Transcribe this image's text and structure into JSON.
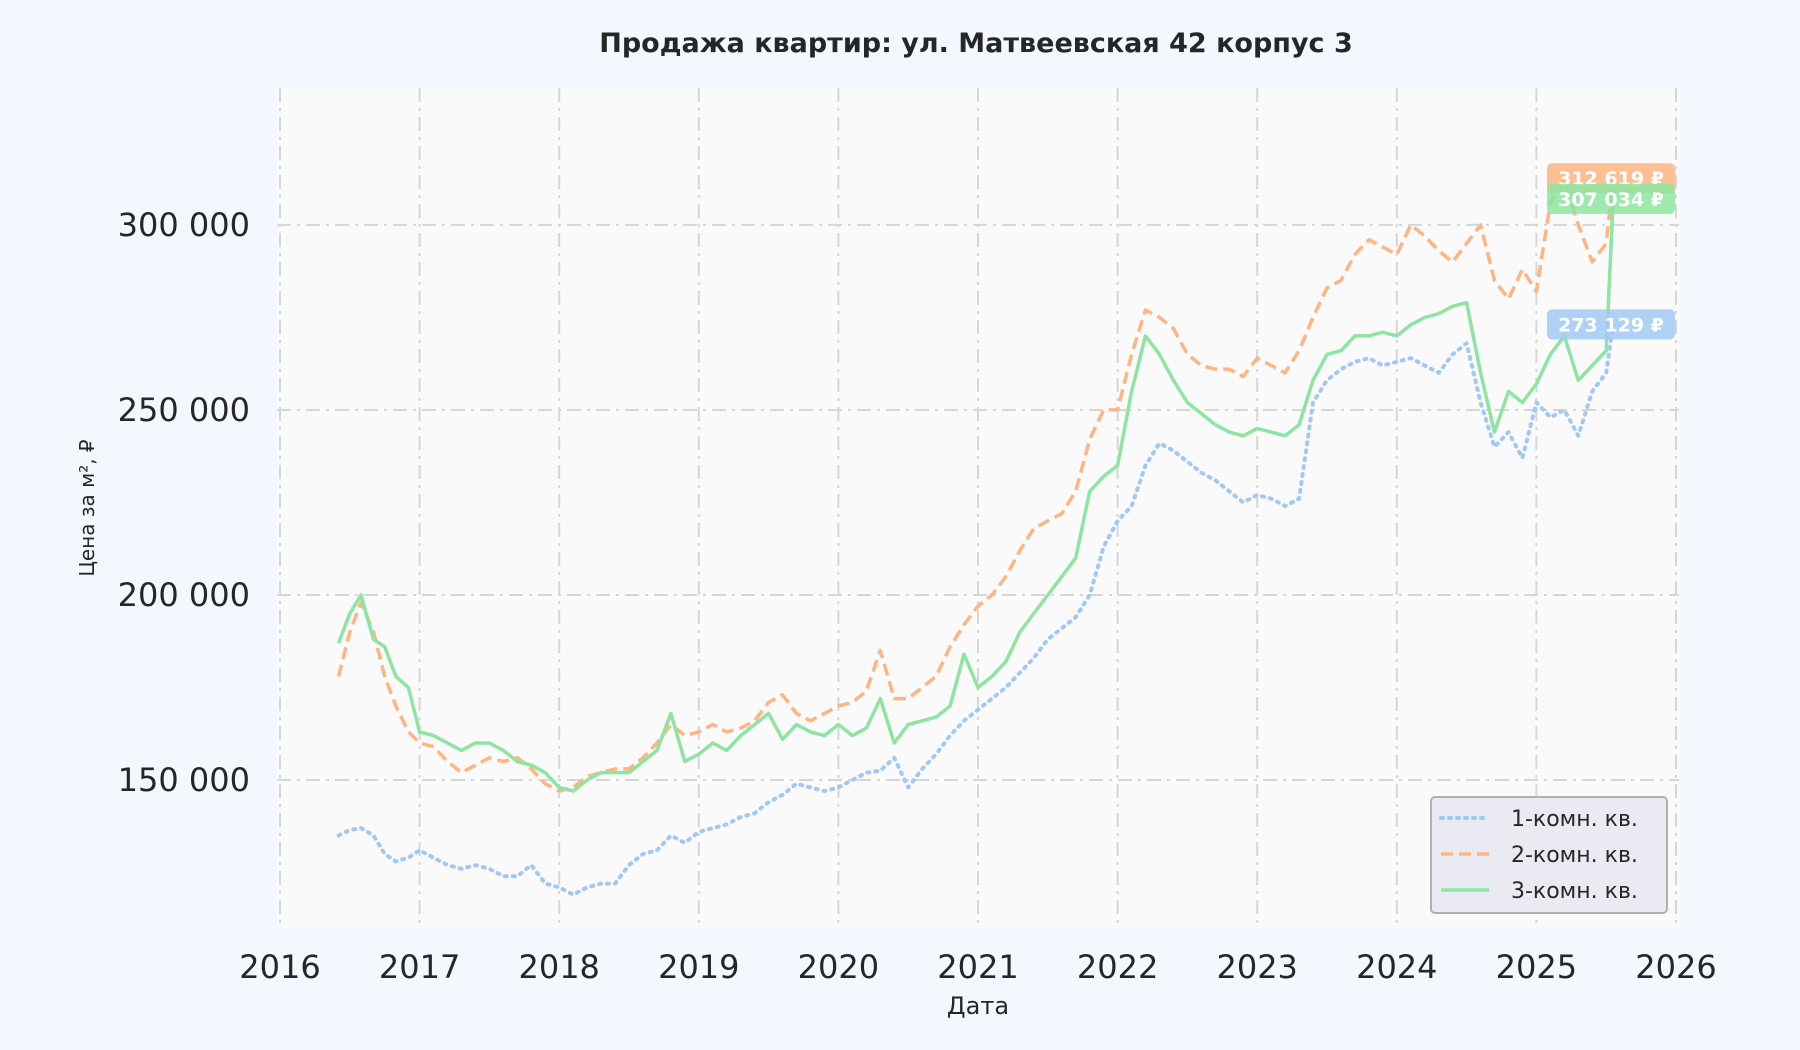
{
  "chart_data": {
    "type": "line",
    "title": "Продажа квартир: ул. Матвеевская 42 корпус 3",
    "xlabel": "Дата",
    "ylabel": "Цена за м², ₽",
    "xlim": [
      2016.0,
      2026.0
    ],
    "ylim": [
      110000,
      337000
    ],
    "x_ticks": [
      2016,
      2017,
      2018,
      2019,
      2020,
      2021,
      2022,
      2023,
      2024,
      2025,
      2026
    ],
    "x_tick_labels": [
      "2016",
      "2017",
      "2018",
      "2019",
      "2020",
      "2021",
      "2022",
      "2023",
      "2024",
      "2025",
      "2026"
    ],
    "y_ticks": [
      150000,
      200000,
      250000,
      300000
    ],
    "y_tick_labels": [
      "150 000",
      "200 000",
      "250 000",
      "300 000"
    ],
    "grid": true,
    "legend_position": "bottom-right",
    "series": [
      {
        "name": "1-комн. кв.",
        "color": "#a1c9f4",
        "style": "dotted",
        "end_label": "273 129 ₽",
        "end_value": 273129,
        "x": [
          2016.42,
          2016.5,
          2016.58,
          2016.67,
          2016.75,
          2016.83,
          2016.92,
          2017.0,
          2017.1,
          2017.2,
          2017.3,
          2017.4,
          2017.5,
          2017.6,
          2017.7,
          2017.8,
          2017.9,
          2018.0,
          2018.1,
          2018.2,
          2018.3,
          2018.4,
          2018.5,
          2018.6,
          2018.7,
          2018.8,
          2018.9,
          2019.0,
          2019.1,
          2019.2,
          2019.3,
          2019.4,
          2019.5,
          2019.6,
          2019.7,
          2019.8,
          2019.9,
          2020.0,
          2020.1,
          2020.2,
          2020.3,
          2020.4,
          2020.5,
          2020.6,
          2020.7,
          2020.8,
          2020.9,
          2021.0,
          2021.1,
          2021.2,
          2021.3,
          2021.4,
          2021.5,
          2021.6,
          2021.7,
          2021.8,
          2021.9,
          2022.0,
          2022.1,
          2022.2,
          2022.3,
          2022.4,
          2022.5,
          2022.6,
          2022.7,
          2022.8,
          2022.9,
          2023.0,
          2023.1,
          2023.2,
          2023.3,
          2023.4,
          2023.5,
          2023.6,
          2023.7,
          2023.8,
          2023.9,
          2024.0,
          2024.1,
          2024.2,
          2024.3,
          2024.4,
          2024.5,
          2024.6,
          2024.7,
          2024.8,
          2024.9,
          2025.0,
          2025.1,
          2025.2,
          2025.3,
          2025.4,
          2025.5,
          2025.55
        ],
        "y": [
          135000,
          136500,
          137000,
          135000,
          130000,
          128000,
          129000,
          131000,
          129000,
          127000,
          126000,
          127000,
          126000,
          124000,
          124000,
          127000,
          122000,
          121000,
          119000,
          121000,
          122000,
          122000,
          127000,
          130000,
          131000,
          135000,
          133000,
          136000,
          137000,
          138000,
          140000,
          141000,
          144000,
          146000,
          149000,
          148000,
          147000,
          148000,
          150000,
          152000,
          152500,
          156000,
          148000,
          153000,
          157000,
          162000,
          166000,
          169000,
          172000,
          175000,
          179000,
          183000,
          188000,
          191000,
          194000,
          200000,
          213000,
          220000,
          224000,
          235000,
          241000,
          239000,
          236000,
          233000,
          231000,
          228000,
          225000,
          227000,
          226000,
          224000,
          226000,
          252000,
          258000,
          261000,
          263000,
          264000,
          262000,
          263000,
          264000,
          262000,
          260000,
          265000,
          268000,
          252000,
          240000,
          244000,
          237000,
          252000,
          248000,
          250000,
          243000,
          255000,
          260000,
          273129
        ]
      },
      {
        "name": "2-комн. кв.",
        "color": "#ffb482",
        "style": "dashed",
        "end_label": "312 619 ₽",
        "end_value": 312619,
        "x": [
          2016.42,
          2016.5,
          2016.58,
          2016.67,
          2016.75,
          2016.83,
          2016.92,
          2017.0,
          2017.1,
          2017.2,
          2017.3,
          2017.4,
          2017.5,
          2017.6,
          2017.7,
          2017.8,
          2017.9,
          2018.0,
          2018.1,
          2018.2,
          2018.3,
          2018.4,
          2018.5,
          2018.6,
          2018.7,
          2018.8,
          2018.9,
          2019.0,
          2019.1,
          2019.2,
          2019.3,
          2019.4,
          2019.5,
          2019.6,
          2019.7,
          2019.8,
          2019.9,
          2020.0,
          2020.1,
          2020.2,
          2020.3,
          2020.4,
          2020.5,
          2020.6,
          2020.7,
          2020.8,
          2020.9,
          2021.0,
          2021.1,
          2021.2,
          2021.3,
          2021.4,
          2021.5,
          2021.6,
          2021.7,
          2021.8,
          2021.9,
          2022.0,
          2022.1,
          2022.2,
          2022.3,
          2022.4,
          2022.5,
          2022.6,
          2022.7,
          2022.8,
          2022.9,
          2023.0,
          2023.1,
          2023.2,
          2023.3,
          2023.4,
          2023.5,
          2023.6,
          2023.7,
          2023.8,
          2023.9,
          2024.0,
          2024.1,
          2024.2,
          2024.3,
          2024.4,
          2024.5,
          2024.6,
          2024.7,
          2024.8,
          2024.9,
          2025.0,
          2025.1,
          2025.2,
          2025.3,
          2025.4,
          2025.5,
          2025.55
        ],
        "y": [
          178000,
          190000,
          198000,
          190000,
          178000,
          170000,
          163000,
          160000,
          159000,
          155000,
          152000,
          154000,
          156000,
          155000,
          156000,
          153000,
          149000,
          147000,
          148000,
          151000,
          152000,
          153000,
          153000,
          156000,
          160000,
          165000,
          162000,
          163000,
          165000,
          163000,
          164000,
          166000,
          171000,
          173000,
          168000,
          166000,
          168000,
          170000,
          171000,
          174000,
          185000,
          172000,
          172000,
          175000,
          178000,
          186000,
          192000,
          197000,
          200000,
          205000,
          212000,
          218000,
          220000,
          222000,
          228000,
          242000,
          250000,
          250000,
          265000,
          277000,
          275000,
          272000,
          265000,
          262000,
          261000,
          261000,
          259000,
          264000,
          262000,
          260000,
          266000,
          275000,
          283000,
          285000,
          292000,
          296000,
          294000,
          292000,
          300000,
          297000,
          293000,
          290000,
          295000,
          300000,
          285000,
          280000,
          288000,
          282000,
          306000,
          312000,
          300000,
          290000,
          295000,
          312619
        ]
      },
      {
        "name": "3-комн. кв.",
        "color": "#8de5a1",
        "style": "solid",
        "end_label": "307 034 ₽",
        "end_value": 307034,
        "x": [
          2016.42,
          2016.5,
          2016.58,
          2016.67,
          2016.75,
          2016.83,
          2016.92,
          2017.0,
          2017.1,
          2017.2,
          2017.3,
          2017.4,
          2017.5,
          2017.6,
          2017.7,
          2017.8,
          2017.9,
          2018.0,
          2018.1,
          2018.2,
          2018.3,
          2018.4,
          2018.5,
          2018.6,
          2018.7,
          2018.8,
          2018.9,
          2019.0,
          2019.1,
          2019.2,
          2019.3,
          2019.4,
          2019.5,
          2019.6,
          2019.7,
          2019.8,
          2019.9,
          2020.0,
          2020.1,
          2020.2,
          2020.3,
          2020.4,
          2020.5,
          2020.6,
          2020.7,
          2020.8,
          2020.9,
          2021.0,
          2021.1,
          2021.2,
          2021.3,
          2021.4,
          2021.5,
          2021.6,
          2021.7,
          2021.8,
          2021.9,
          2022.0,
          2022.1,
          2022.2,
          2022.3,
          2022.4,
          2022.5,
          2022.6,
          2022.7,
          2022.8,
          2022.9,
          2023.0,
          2023.1,
          2023.2,
          2023.3,
          2023.4,
          2023.5,
          2023.6,
          2023.7,
          2023.8,
          2023.9,
          2024.0,
          2024.1,
          2024.2,
          2024.3,
          2024.4,
          2024.5,
          2024.6,
          2024.7,
          2024.8,
          2024.9,
          2025.0,
          2025.1,
          2025.2,
          2025.3,
          2025.4,
          2025.5,
          2025.55
        ],
        "y": [
          187000,
          195000,
          200000,
          188000,
          186000,
          178000,
          175000,
          163000,
          162000,
          160000,
          158000,
          160000,
          160000,
          158000,
          155000,
          154000,
          152000,
          148000,
          147000,
          150000,
          152000,
          152000,
          152000,
          155000,
          158000,
          168000,
          155000,
          157000,
          160000,
          158000,
          162000,
          165000,
          168000,
          161000,
          165000,
          163000,
          162000,
          165000,
          162000,
          164000,
          172000,
          160000,
          165000,
          166000,
          167000,
          170000,
          184000,
          175000,
          178000,
          182000,
          190000,
          195000,
          200000,
          205000,
          210000,
          228000,
          232000,
          235000,
          255000,
          270000,
          265000,
          258000,
          252000,
          249000,
          246000,
          244000,
          243000,
          245000,
          244000,
          243000,
          246000,
          258000,
          265000,
          266000,
          270000,
          270000,
          271000,
          270000,
          273000,
          275000,
          276000,
          278000,
          279000,
          260000,
          244000,
          255000,
          252000,
          257000,
          265000,
          270000,
          258000,
          262000,
          266000,
          307034
        ]
      }
    ]
  }
}
